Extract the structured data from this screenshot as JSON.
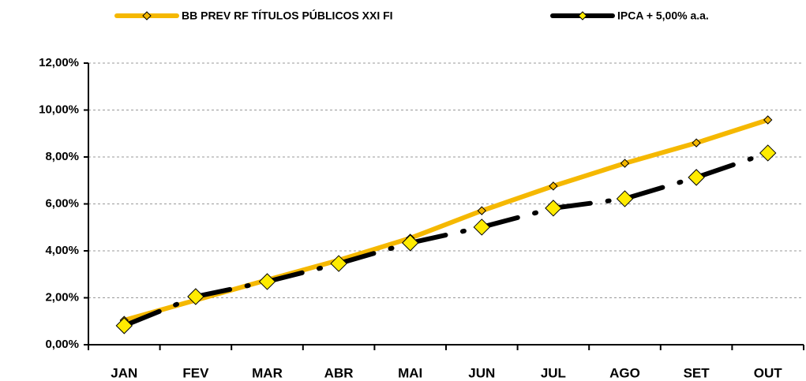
{
  "chart_data": {
    "type": "line",
    "categories": [
      "JAN",
      "FEV",
      "MAR",
      "ABR",
      "MAI",
      "JUN",
      "JUL",
      "AGO",
      "SET",
      "OUT"
    ],
    "series": [
      {
        "name": "BB PREV RF TÍTULOS PÚBLICOS XXI FI",
        "color": "#f5b800",
        "values": [
          1.04,
          1.9,
          2.76,
          3.6,
          4.54,
          5.71,
          6.76,
          7.73,
          8.6,
          9.58
        ]
      },
      {
        "name": "IPCA + 5,00% a.a.",
        "color": "#000000",
        "values": [
          0.81,
          2.05,
          2.69,
          3.46,
          4.34,
          5.01,
          5.82,
          6.22,
          7.13,
          8.17
        ]
      }
    ],
    "ylim": [
      0,
      12
    ],
    "yticks": [
      {
        "value": 0,
        "label": "0,00%"
      },
      {
        "value": 2,
        "label": "2,00%"
      },
      {
        "value": 4,
        "label": "4,00%"
      },
      {
        "value": 6,
        "label": "6,00%"
      },
      {
        "value": 8,
        "label": "8,00%"
      },
      {
        "value": 10,
        "label": "10,00%"
      },
      {
        "value": 12,
        "label": "12,00%"
      }
    ],
    "grid": true,
    "legend": "top"
  }
}
